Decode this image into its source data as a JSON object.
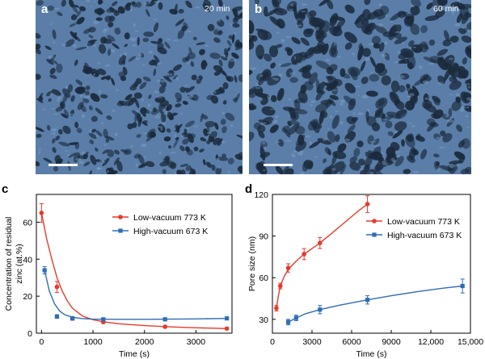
{
  "panels": {
    "a": {
      "letter": "a",
      "time": "20 min"
    },
    "b": {
      "letter": "b",
      "time": "60 min"
    },
    "c": {
      "letter": "c"
    },
    "d": {
      "letter": "d"
    }
  },
  "colors": {
    "sem_base": "#5a7ea8",
    "sem_pore": "#1b2a3c",
    "low_vacuum": "#e8392b",
    "high_vacuum": "#2f6db5"
  },
  "chart_data": [
    {
      "type": "line",
      "panel": "c",
      "xlabel": "Time (s)",
      "ylabel": "Concentration of residual zinc (at.%)",
      "ylabel_lines": [
        "Concentration of residual",
        "zinc (at.%)"
      ],
      "xlim": [
        -100,
        3700
      ],
      "ylim": [
        0,
        75
      ],
      "xticks": [
        0,
        1000,
        2000,
        3000
      ],
      "xtick_labels": [
        "0",
        "1000",
        "2000",
        "3000"
      ],
      "yticks": [
        0,
        20,
        40,
        60
      ],
      "ytick_labels": [
        "0",
        "20",
        "40",
        "60"
      ],
      "legend_position": "top-right",
      "series": [
        {
          "name": "Low-vacuum 773 K",
          "marker": "circle",
          "color": "#e8392b",
          "x": [
            0,
            300,
            600,
            1200,
            2400,
            3600
          ],
          "y": [
            65,
            25,
            8,
            6,
            3.5,
            2.5
          ],
          "err": [
            5,
            3,
            1,
            0.5,
            0.5,
            0.5
          ],
          "fit_x": [
            0,
            100,
            200,
            300,
            400,
            500,
            600,
            800,
            1000,
            1200,
            1500,
            2000,
            2500,
            3000,
            3600
          ],
          "fit_y": [
            65,
            51,
            40,
            30,
            23,
            17.5,
            13.5,
            9.2,
            7.3,
            6.2,
            5.1,
            4.1,
            3.4,
            2.9,
            2.5
          ]
        },
        {
          "name": "High-vacuum 673 K",
          "marker": "square",
          "color": "#2f6db5",
          "x": [
            60,
            300,
            600,
            1200,
            2400,
            3600
          ],
          "y": [
            34,
            9,
            8,
            7.5,
            7.5,
            8
          ],
          "err": [
            2,
            1,
            0.5,
            0.5,
            0.5,
            0.5
          ],
          "fit_x": [
            60,
            150,
            250,
            350,
            450,
            600,
            800,
            1000,
            1500,
            2000,
            3000,
            3600
          ],
          "fit_y": [
            34,
            23,
            16,
            12,
            10,
            8.6,
            7.9,
            7.6,
            7.5,
            7.5,
            7.7,
            8
          ]
        }
      ]
    },
    {
      "type": "line",
      "panel": "d",
      "xlabel": "Time (s)",
      "ylabel": "Pore size (nm)",
      "xlim": [
        0,
        15000
      ],
      "ylim": [
        20,
        120
      ],
      "xticks": [
        0,
        3000,
        6000,
        9000,
        12000,
        15000
      ],
      "xtick_labels": [
        "0",
        "3000",
        "6000",
        "9000",
        "12,000",
        "15,000"
      ],
      "yticks": [
        30,
        60,
        90,
        120
      ],
      "ytick_labels": [
        "30",
        "60",
        "90",
        "120"
      ],
      "legend_position": "center-right",
      "series": [
        {
          "name": "Low-vacuum 773 K",
          "marker": "circle",
          "color": "#e8392b",
          "x": [
            300,
            600,
            1200,
            2400,
            3600,
            7200
          ],
          "y": [
            38,
            54,
            67,
            77,
            85,
            113
          ],
          "err": [
            2,
            2,
            3,
            4,
            4,
            6
          ],
          "fit_x": [
            300,
            450,
            600,
            900,
            1200,
            1800,
            2400,
            3000,
            3600,
            4500,
            5500,
            6500,
            7200
          ],
          "fit_y": [
            38,
            47,
            54,
            61,
            66,
            72,
            77,
            81,
            85,
            92,
            100,
            108,
            113
          ]
        },
        {
          "name": "High-vacuum 673 K",
          "marker": "square",
          "color": "#2f6db5",
          "x": [
            1200,
            1800,
            3600,
            7200,
            14400
          ],
          "y": [
            28,
            31,
            37,
            44,
            54
          ],
          "err": [
            2,
            2,
            3,
            3,
            5
          ],
          "fit_x": [
            1200,
            1800,
            2500,
            3600,
            5000,
            7200,
            9000,
            11000,
            13000,
            14400
          ],
          "fit_y": [
            28,
            31,
            34,
            37,
            40,
            44,
            47,
            50,
            52.5,
            54
          ]
        }
      ]
    }
  ]
}
